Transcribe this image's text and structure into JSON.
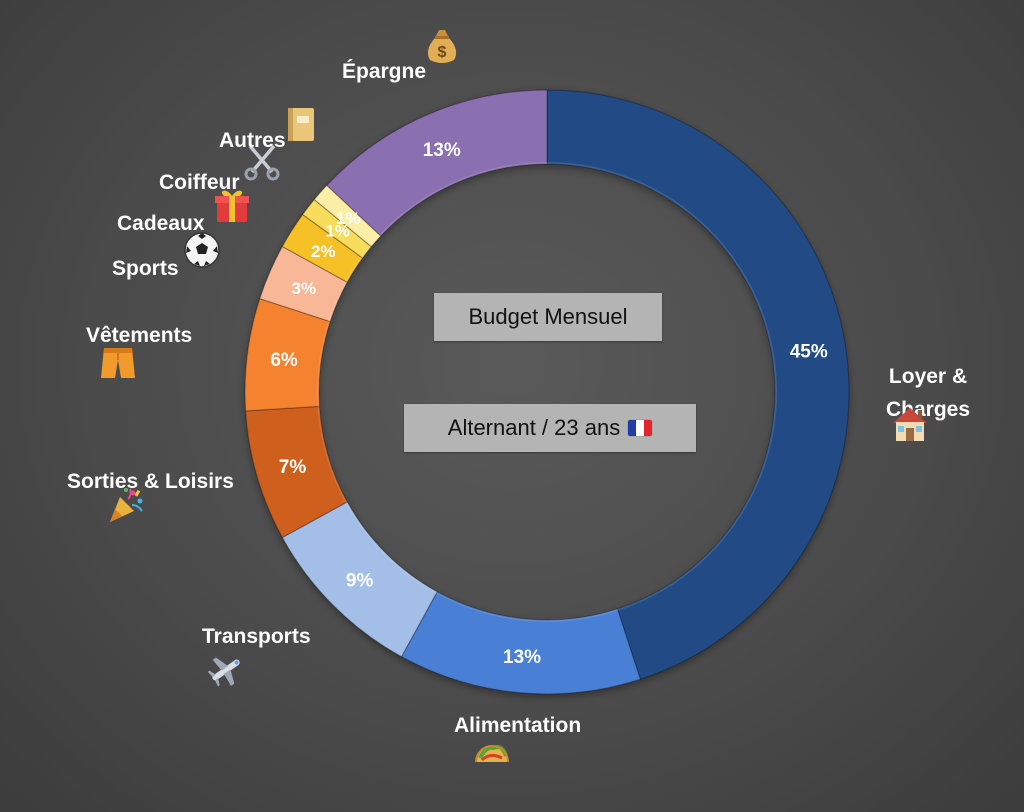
{
  "chart_data": {
    "type": "pie",
    "variant": "donut",
    "title": "Budget Mensuel",
    "subtitle": "Alternant / 23 ans",
    "slices": [
      {
        "label": "Loyer & Charges",
        "value": 45,
        "value_label": "45%",
        "color": "#234c86",
        "icon": "house-icon"
      },
      {
        "label": "Alimentation",
        "value": 13,
        "value_label": "13%",
        "color": "#4a7fd4",
        "icon": "taco-icon"
      },
      {
        "label": "Transports",
        "value": 9,
        "value_label": "9%",
        "color": "#a3bfe8",
        "icon": "airplane-icon"
      },
      {
        "label": "Sorties & Loisirs",
        "value": 7,
        "value_label": "7%",
        "color": "#cf5e1e",
        "icon": "party-popper-icon"
      },
      {
        "label": "Vêtements",
        "value": 6,
        "value_label": "6%",
        "color": "#f4822e",
        "icon": "shorts-icon"
      },
      {
        "label": "Sports",
        "value": 3,
        "value_label": "3%",
        "color": "#f8b797",
        "icon": "soccer-ball-icon"
      },
      {
        "label": "Cadeaux",
        "value": 2,
        "value_label": "2%",
        "color": "#f6c128",
        "icon": "gift-icon"
      },
      {
        "label": "Coiffeur",
        "value": 1,
        "value_label": "1%",
        "color": "#f8dc5c",
        "icon": "scissors-icon"
      },
      {
        "label": "Autres",
        "value": 1,
        "value_label": "1%",
        "color": "#fbeea6",
        "icon": "notebook-icon"
      },
      {
        "label": "Épargne",
        "value": 13,
        "value_label": "13%",
        "color": "#8b6fb1",
        "icon": "money-bag-icon"
      }
    ],
    "flag_colors": [
      "#1f3ea8",
      "#ffffff",
      "#e2252b"
    ]
  }
}
